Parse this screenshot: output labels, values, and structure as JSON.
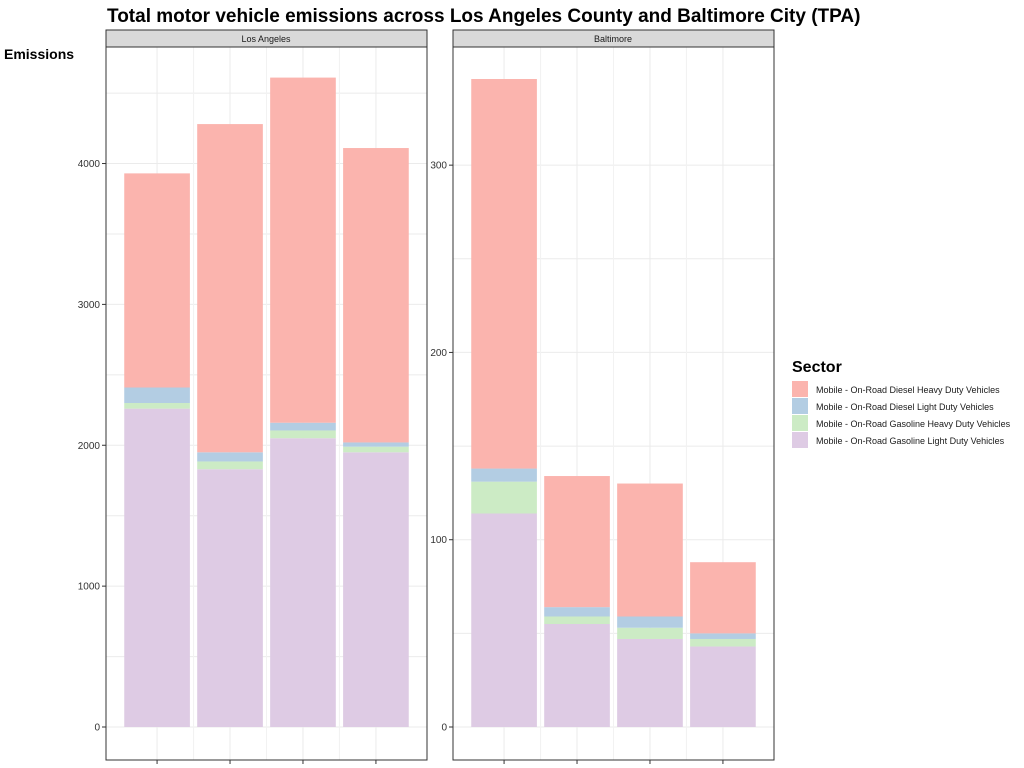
{
  "chart_data": {
    "type": "bar",
    "stacked": true,
    "title": "Total motor vehicle emissions across Los Angeles County and Baltimore City (TPA)",
    "ylabel": "Emissions",
    "legend": {
      "title": "Sector",
      "position": "right",
      "entries": [
        {
          "label": "Mobile - On-Road Diesel Heavy Duty Vehicles",
          "color": "#FBB4AE"
        },
        {
          "label": "Mobile - On-Road Diesel Light Duty Vehicles",
          "color": "#B3CDE3"
        },
        {
          "label": "Mobile - On-Road Gasoline Heavy Duty Vehicles",
          "color": "#CCEBC5"
        },
        {
          "label": "Mobile - On-Road Gasoline Light Duty Vehicles",
          "color": "#DECBE4"
        }
      ]
    },
    "grid": true,
    "panels": [
      {
        "name": "Los Angeles",
        "ylim": [
          0,
          4600
        ],
        "yticks": [
          0,
          1000,
          2000,
          3000,
          4000
        ],
        "bars": [
          {
            "gasoline_light": 2260,
            "gasoline_heavy": 40,
            "diesel_light": 110,
            "diesel_heavy": 1520
          },
          {
            "gasoline_light": 1830,
            "gasoline_heavy": 55,
            "diesel_light": 65,
            "diesel_heavy": 2330
          },
          {
            "gasoline_light": 2050,
            "gasoline_heavy": 55,
            "diesel_light": 55,
            "diesel_heavy": 2450
          },
          {
            "gasoline_light": 1950,
            "gasoline_heavy": 40,
            "diesel_light": 30,
            "diesel_heavy": 2090
          }
        ]
      },
      {
        "name": "Baltimore",
        "ylim": [
          0,
          346
        ],
        "yticks": [
          0,
          100,
          200,
          300
        ],
        "bars": [
          {
            "gasoline_light": 114,
            "gasoline_heavy": 17,
            "diesel_light": 7,
            "diesel_heavy": 208
          },
          {
            "gasoline_light": 55,
            "gasoline_heavy": 4,
            "diesel_light": 5,
            "diesel_heavy": 70
          },
          {
            "gasoline_light": 47,
            "gasoline_heavy": 6,
            "diesel_light": 6,
            "diesel_heavy": 71
          },
          {
            "gasoline_light": 43,
            "gasoline_heavy": 4,
            "diesel_light": 3,
            "diesel_heavy": 38
          }
        ]
      }
    ]
  }
}
